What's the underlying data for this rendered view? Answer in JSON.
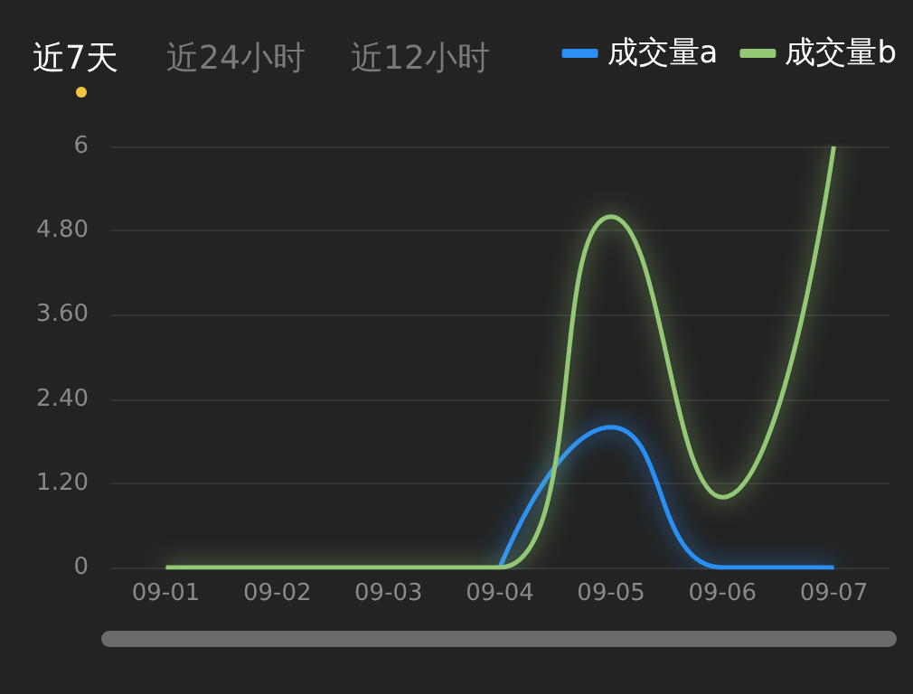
{
  "chart_data": {
    "type": "line",
    "categories": [
      "09-01",
      "09-02",
      "09-03",
      "09-04",
      "09-05",
      "09-06",
      "09-07"
    ],
    "series": [
      {
        "name": "成交量a",
        "color": "#2b8ff5",
        "values": [
          null,
          null,
          null,
          0,
          2,
          0,
          0
        ]
      },
      {
        "name": "成交量b",
        "color": "#93c874",
        "values": [
          0,
          0,
          0,
          0,
          5,
          1,
          6
        ]
      }
    ],
    "ylim": [
      0,
      6
    ],
    "yticks": [
      0,
      {
        "value": 1.2,
        "label": "1.20"
      },
      {
        "value": 2.4,
        "label": "2.40"
      },
      {
        "value": 3.6,
        "label": "3.60"
      },
      {
        "value": 4.8,
        "label": "4.80"
      },
      6
    ],
    "grid": "y",
    "legend": "top right",
    "marker": "none",
    "line_style": "solid",
    "annotations": [
      "近7天",
      "近24小时",
      "近12小时"
    ]
  }
}
